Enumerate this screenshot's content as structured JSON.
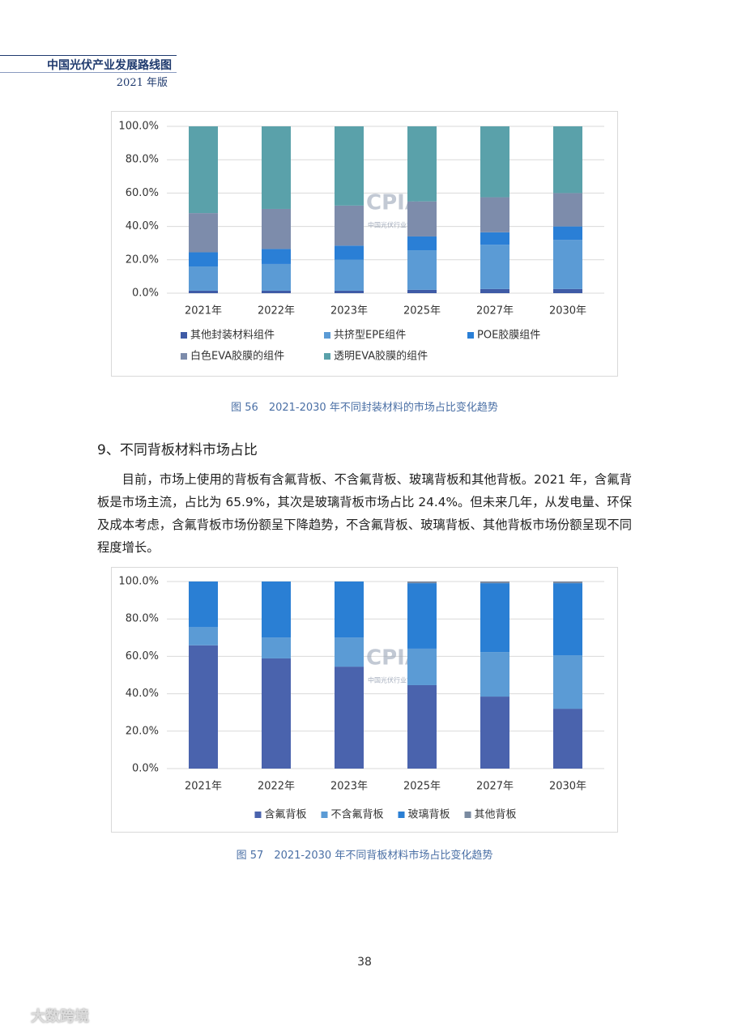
{
  "header": {
    "title": "中国光伏产业发展路线图",
    "edition": "2021 年版"
  },
  "chart_data": [
    {
      "type": "stacked-bar",
      "caption": "图 56　2021-2030 年不同封装材料的市场占比变化趋势",
      "categories": [
        "2021年",
        "2022年",
        "2023年",
        "2025年",
        "2027年",
        "2030年"
      ],
      "series": [
        {
          "name": "其他封装材料组件",
          "color": "#3f5ba6",
          "values": [
            1.5,
            1.5,
            1.5,
            2,
            2.5,
            2.5
          ]
        },
        {
          "name": "共挤型EPE组件",
          "color": "#5b9bd5",
          "values": [
            14.5,
            16,
            18.5,
            23.7,
            26.5,
            29.5
          ]
        },
        {
          "name": "POE胶膜组件",
          "color": "#2a7fd6",
          "values": [
            8.5,
            9,
            8.5,
            8.3,
            7.5,
            8
          ]
        },
        {
          "name": "白色EVA胶膜的组件",
          "color": "#7d8cab",
          "values": [
            23.5,
            24,
            24,
            21,
            21,
            20
          ]
        },
        {
          "name": "透明EVA胶膜的组件",
          "color": "#5aa1aa",
          "values": [
            52,
            49.5,
            47.5,
            45,
            42.5,
            40
          ]
        }
      ],
      "ylim": [
        0,
        100
      ],
      "yticks": [
        {
          "value": 0,
          "label": "0.0%"
        },
        {
          "value": 20,
          "label": "20.0%"
        },
        {
          "value": 40,
          "label": "40.0%"
        },
        {
          "value": 60,
          "label": "60.0%"
        },
        {
          "value": 80,
          "label": "80.0%"
        },
        {
          "value": 100,
          "label": "100.0%"
        }
      ],
      "grid": true,
      "legend": "bottom",
      "watermark": "CPIA",
      "watermark_sub": "中国光伏行业协会"
    },
    {
      "type": "stacked-bar",
      "caption": "图 57　2021-2030 年不同背板材料市场占比变化趋势",
      "categories": [
        "2021年",
        "2022年",
        "2023年",
        "2025年",
        "2027年",
        "2030年"
      ],
      "series": [
        {
          "name": "含氟背板",
          "color": "#4a63ad",
          "values": [
            65.9,
            58.9,
            54.5,
            44.6,
            38.5,
            32
          ]
        },
        {
          "name": "不含氟背板",
          "color": "#5b9bd5",
          "values": [
            9.7,
            11.2,
            15.6,
            19.5,
            23.8,
            28.6
          ]
        },
        {
          "name": "玻璃背板",
          "color": "#2a7fd4",
          "values": [
            24.4,
            29.9,
            29.9,
            35,
            36.8,
            38.5
          ]
        },
        {
          "name": "其他背板",
          "color": "#7a8aa0",
          "values": [
            0,
            0,
            0,
            0.9,
            0.9,
            0.9
          ]
        }
      ],
      "ylim": [
        0,
        100
      ],
      "yticks": [
        {
          "value": 0,
          "label": "0.0%"
        },
        {
          "value": 20,
          "label": "20.0%"
        },
        {
          "value": 40,
          "label": "40.0%"
        },
        {
          "value": 60,
          "label": "60.0%"
        },
        {
          "value": 80,
          "label": "80.0%"
        },
        {
          "value": 100,
          "label": "100.0%"
        }
      ],
      "grid": true,
      "legend": "bottom",
      "watermark": "CPIA",
      "watermark_sub": "中国光伏行业协会"
    }
  ],
  "section": {
    "heading": "9、不同背板材料市场占比",
    "paragraph": "目前，市场上使用的背板有含氟背板、不含氟背板、玻璃背板和其他背板。2021 年，含氟背板是市场主流，占比为 65.9%，其次是玻璃背板市场占比 24.4%。但未来几年，从发电量、环保及成本考虑，含氟背板市场份额呈下降趋势，不含氟背板、玻璃背板、其他背板市场份额呈现不同程度增长。"
  },
  "page_number": "38",
  "footer_watermark": "大数跨境"
}
